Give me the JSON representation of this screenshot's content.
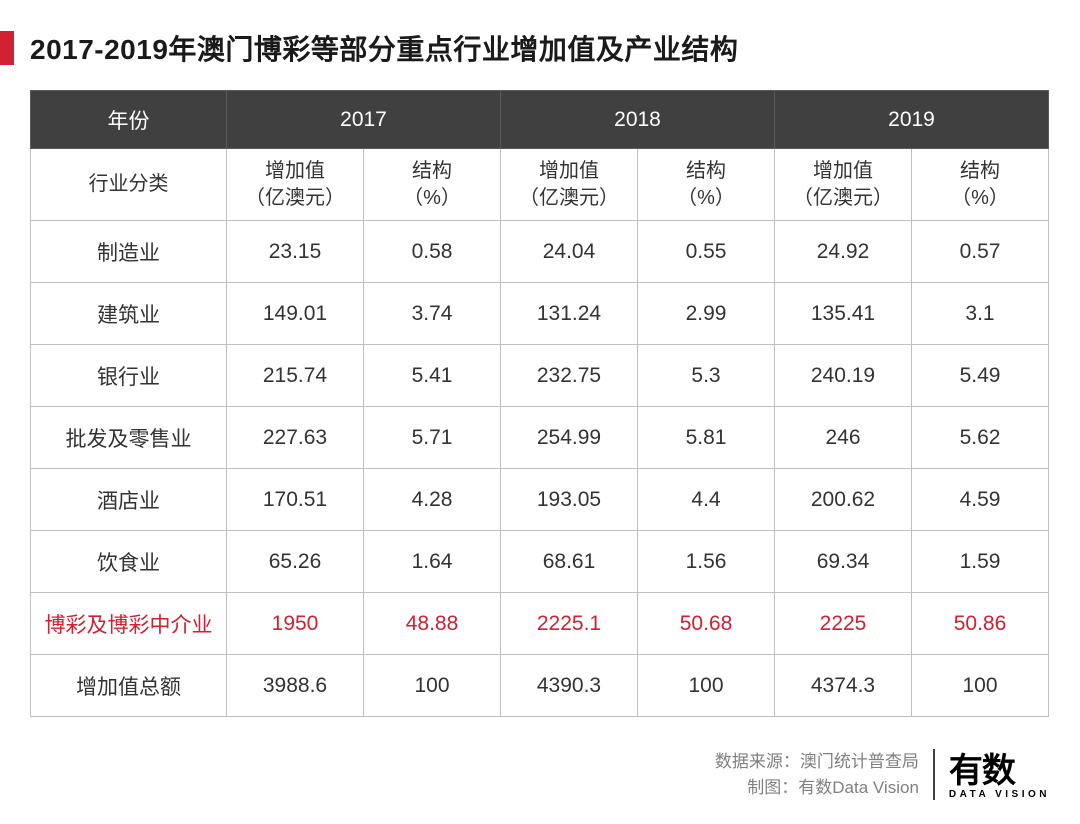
{
  "title": "2017-2019年澳门博彩等部分重点行业增加值及产业结构",
  "header": {
    "year_label": "年份",
    "category_label": "行业分类",
    "years": [
      "2017",
      "2018",
      "2019"
    ],
    "val_label": "增加值\n（亿澳元）",
    "pct_label": "结构\n（%）"
  },
  "rows": [
    {
      "name": "制造业",
      "v17": "23.15",
      "p17": "0.58",
      "v18": "24.04",
      "p18": "0.55",
      "v19": "24.92",
      "p19": "0.57",
      "hl": false
    },
    {
      "name": "建筑业",
      "v17": "149.01",
      "p17": "3.74",
      "v18": "131.24",
      "p18": "2.99",
      "v19": "135.41",
      "p19": "3.1",
      "hl": false
    },
    {
      "name": "银行业",
      "v17": "215.74",
      "p17": "5.41",
      "v18": "232.75",
      "p18": "5.3",
      "v19": "240.19",
      "p19": "5.49",
      "hl": false
    },
    {
      "name": "批发及零售业",
      "v17": "227.63",
      "p17": "5.71",
      "v18": "254.99",
      "p18": "5.81",
      "v19": "246",
      "p19": "5.62",
      "hl": false
    },
    {
      "name": "酒店业",
      "v17": "170.51",
      "p17": "4.28",
      "v18": "193.05",
      "p18": "4.4",
      "v19": "200.62",
      "p19": "4.59",
      "hl": false
    },
    {
      "name": "饮食业",
      "v17": "65.26",
      "p17": "1.64",
      "v18": "68.61",
      "p18": "1.56",
      "v19": "69.34",
      "p19": "1.59",
      "hl": false
    },
    {
      "name": "博彩及博彩中介业",
      "v17": "1950",
      "p17": "48.88",
      "v18": "2225.1",
      "p18": "50.68",
      "v19": "2225",
      "p19": "50.86",
      "hl": true
    },
    {
      "name": "增加值总额",
      "v17": "3988.6",
      "p17": "100",
      "v18": "4390.3",
      "p18": "100",
      "v19": "4374.3",
      "p19": "100",
      "hl": false
    }
  ],
  "footer": {
    "source_label": "数据来源：",
    "source_value": "澳门统计普查局",
    "chart_label": "制图：",
    "chart_value": "有数Data Vision"
  },
  "logo": {
    "main": "有数",
    "sub": "DATA VISION"
  },
  "colors": {
    "accent_red": "#d1202f",
    "header_bg": "#404040",
    "header_border": "#5a5a5a",
    "cell_border": "#bfbfbf",
    "text": "#333333",
    "muted": "#808080"
  }
}
